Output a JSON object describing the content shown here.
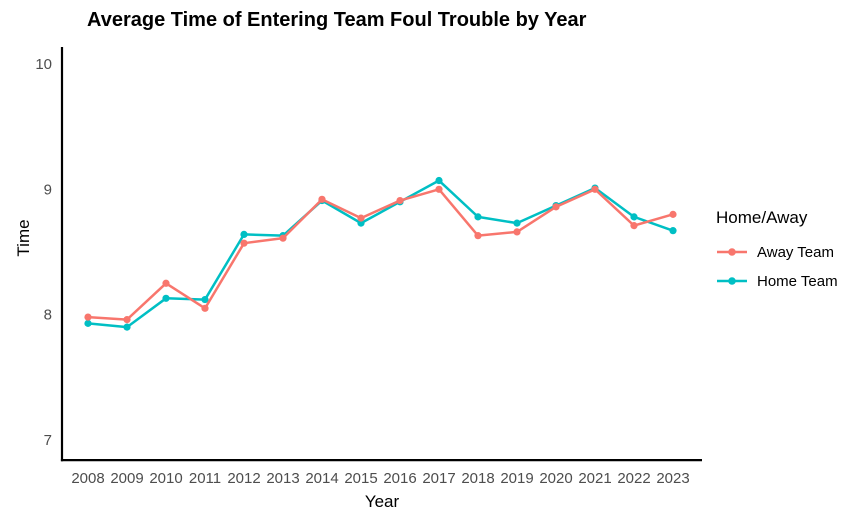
{
  "figure": {
    "title": "Average Time of Entering Team Foul Trouble by Year"
  },
  "chart_data": {
    "type": "line",
    "title": "Average Time of Entering Team Foul Trouble by Year",
    "xlabel": "Year",
    "ylabel": "Time",
    "x": [
      2008,
      2009,
      2010,
      2011,
      2012,
      2013,
      2014,
      2015,
      2016,
      2017,
      2018,
      2019,
      2020,
      2021,
      2022,
      2023
    ],
    "series": [
      {
        "name": "Away Team",
        "color": "#F8766D",
        "values": [
          7.98,
          7.96,
          8.25,
          8.05,
          8.57,
          8.61,
          8.92,
          8.77,
          8.91,
          9.0,
          8.63,
          8.66,
          8.86,
          9.0,
          8.71,
          8.8
        ]
      },
      {
        "name": "Home Team",
        "color": "#00BFC4",
        "values": [
          7.93,
          7.9,
          8.13,
          8.12,
          8.64,
          8.63,
          8.91,
          8.73,
          8.9,
          9.07,
          8.78,
          8.73,
          8.87,
          9.01,
          8.78,
          8.67
        ]
      }
    ],
    "yticks": [
      7,
      8,
      9,
      10
    ],
    "ylim": [
      6.84,
      10.13
    ],
    "grid": false,
    "legend": {
      "title": "Home/Away",
      "position": "right",
      "items": [
        "Away Team",
        "Home Team"
      ]
    },
    "axis_color": "#000000",
    "tick_label_color": "#4D4D4D"
  }
}
